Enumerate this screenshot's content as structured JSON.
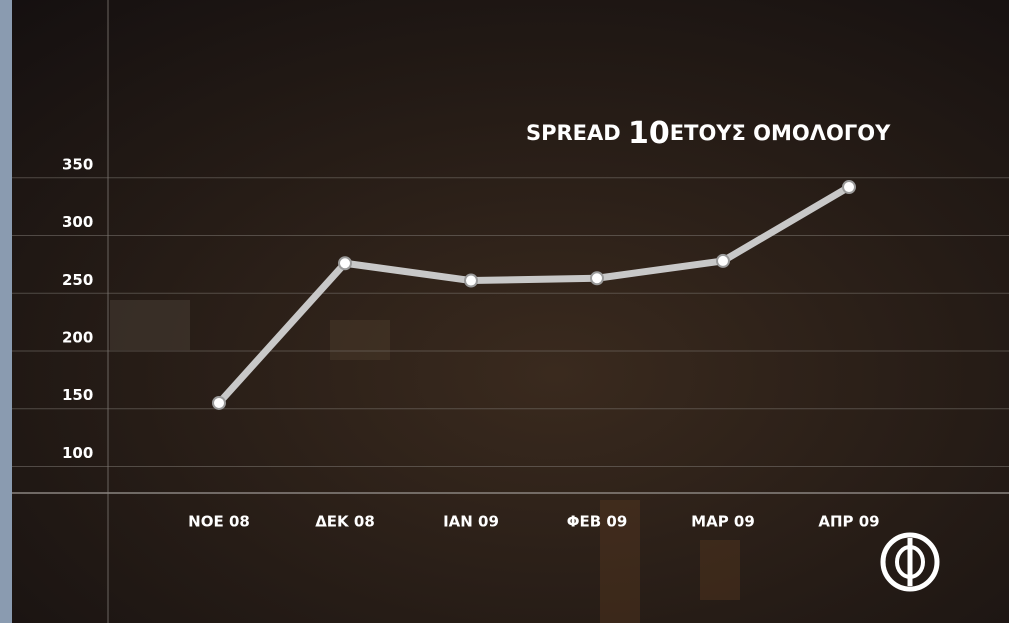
{
  "chart_data": {
    "type": "line",
    "title": [
      "SPREAD",
      "10",
      "ΕΤΟΥΣ ΟΜΟΛΟΓΟΥ"
    ],
    "categories": [
      "ΝΟΕ 08",
      "ΔΕΚ 08",
      "ΙΑΝ 09",
      "ΦΕΒ 09",
      "ΜΑΡ 09",
      "ΑΠΡ 09"
    ],
    "values": [
      155,
      276,
      261,
      263,
      278,
      342
    ],
    "color": "#c8c8c8",
    "ylim": [
      77,
      504
    ],
    "yticks": [
      100,
      150,
      200,
      250,
      300,
      350
    ],
    "grid": true
  }
}
